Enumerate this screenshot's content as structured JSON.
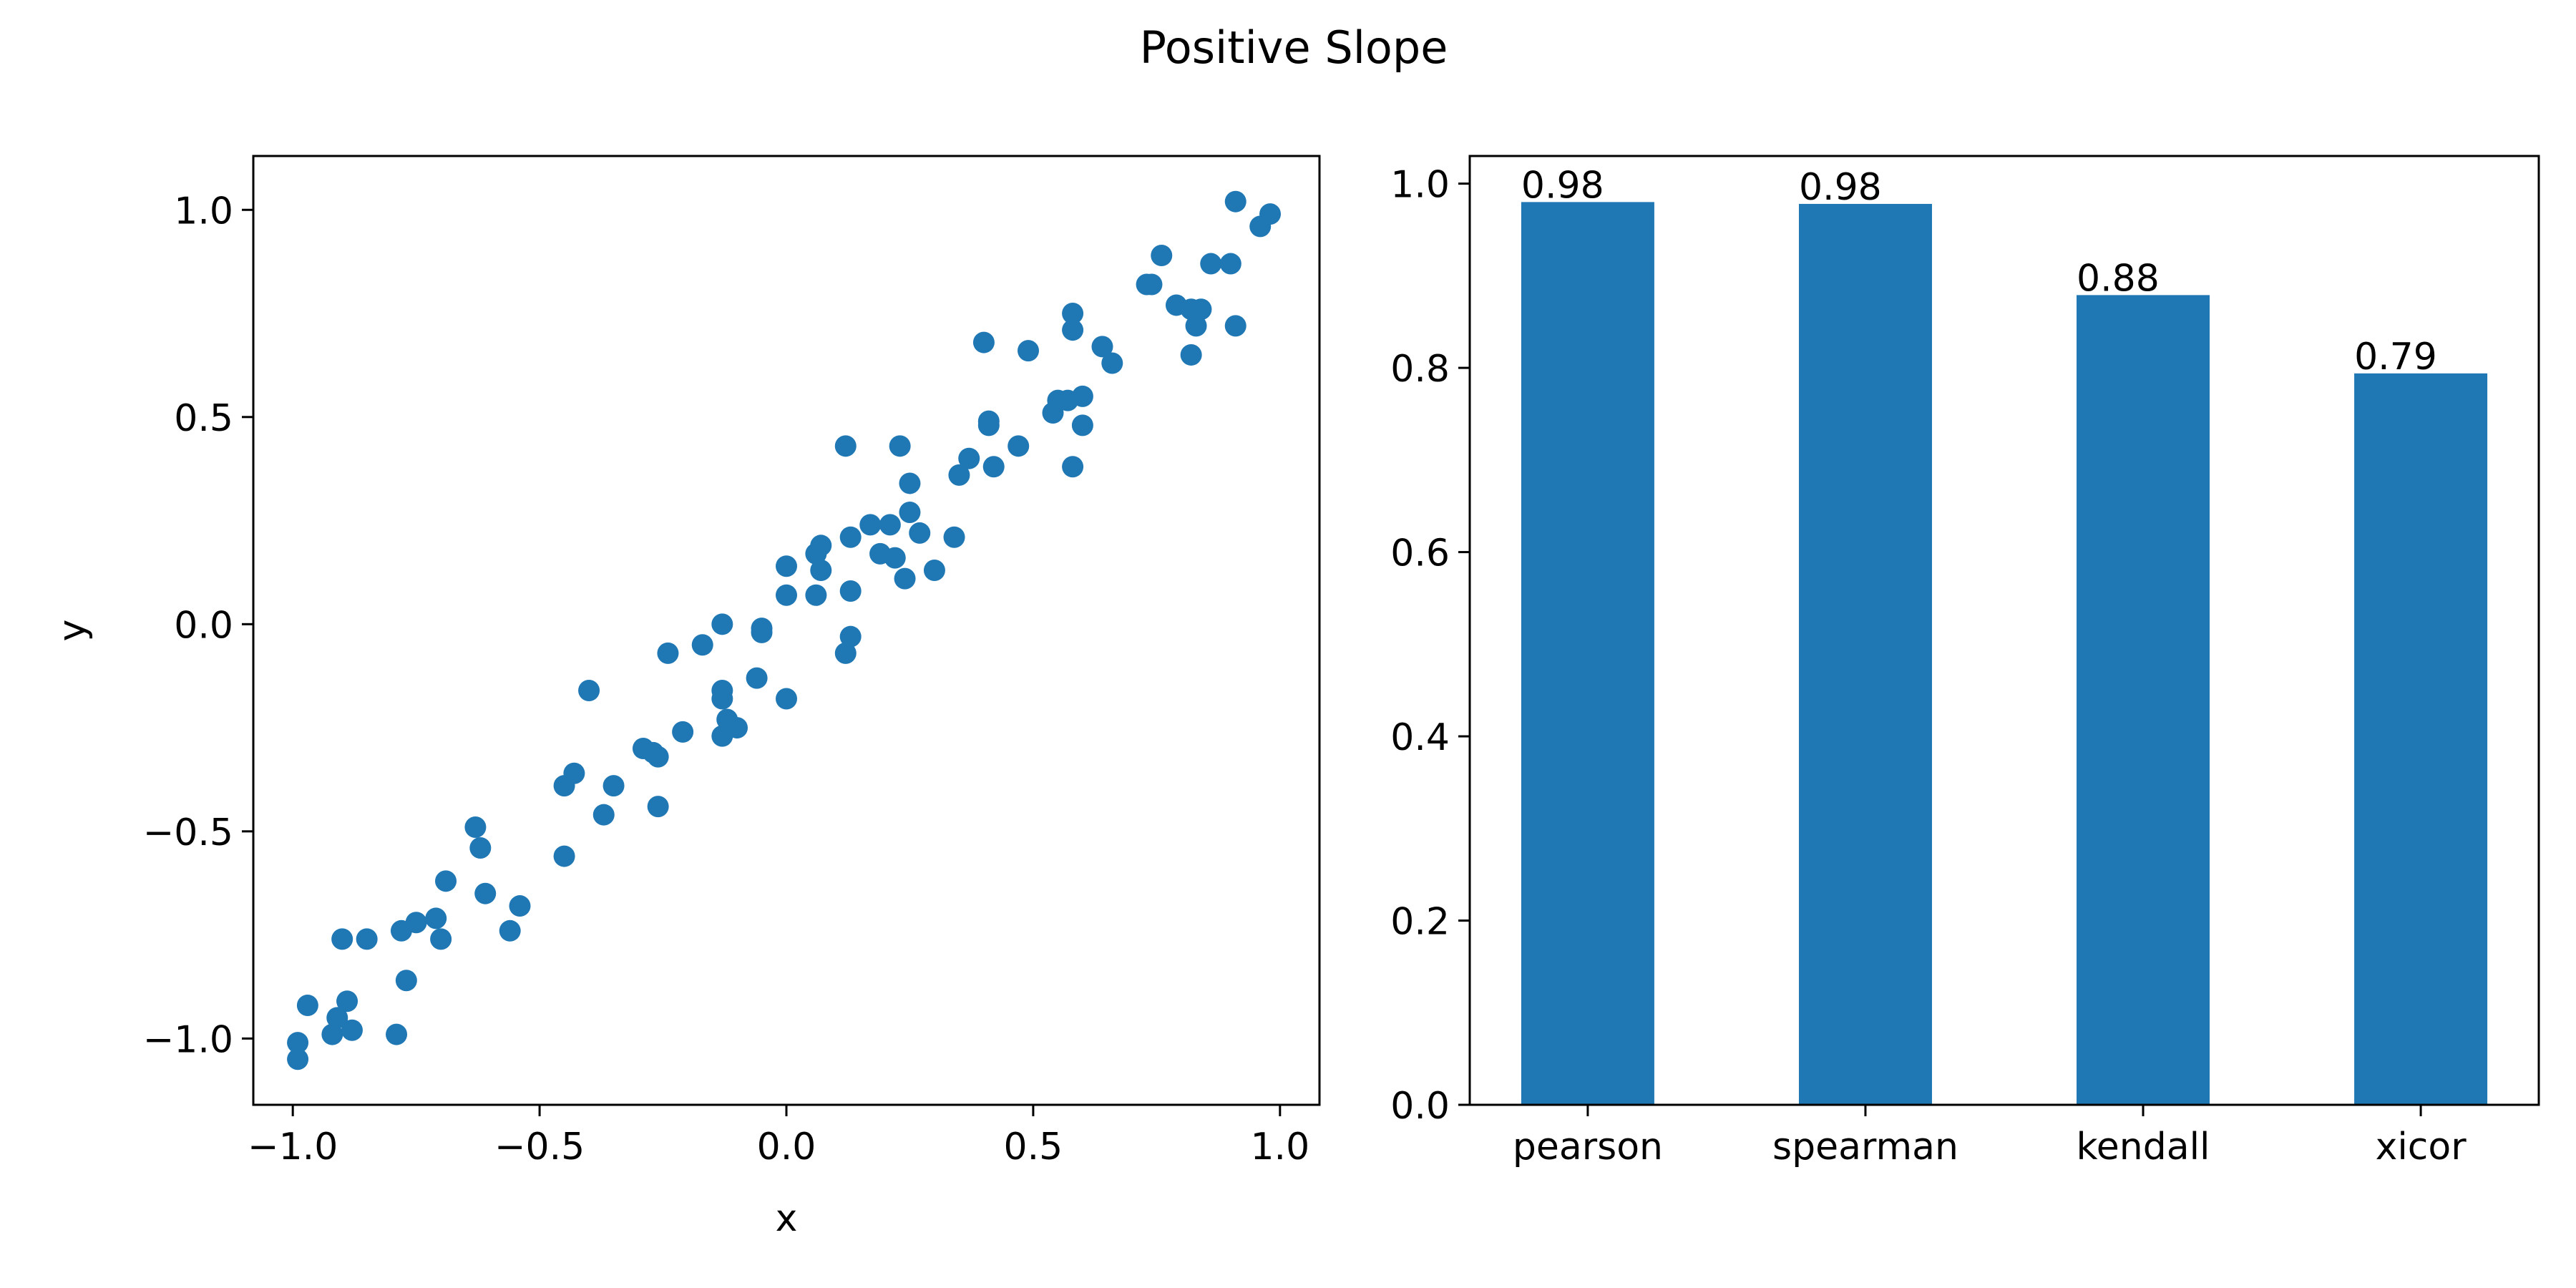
{
  "figure": {
    "title": "Positive Slope",
    "colors": {
      "series": "#1f77b4",
      "axes": "#000000",
      "background": "#ffffff"
    }
  },
  "chart_data": [
    {
      "type": "scatter",
      "xlabel": "x",
      "ylabel": "y",
      "xlim": [
        -1.08,
        1.08
      ],
      "ylim": [
        -1.16,
        1.13
      ],
      "xticks": [
        -1.0,
        -0.5,
        0.0,
        0.5,
        1.0
      ],
      "xtick_labels": [
        "−1.0",
        "−0.5",
        "0.0",
        "0.5",
        "1.0"
      ],
      "yticks": [
        -1.0,
        -0.5,
        0.0,
        0.5,
        1.0
      ],
      "ytick_labels": [
        "−1.0",
        "−0.5",
        "0.0",
        "0.5",
        "1.0"
      ],
      "grid": false,
      "points": [
        [
          -0.99,
          -1.05
        ],
        [
          -0.99,
          -1.01
        ],
        [
          -0.97,
          -0.92
        ],
        [
          -0.92,
          -0.99
        ],
        [
          -0.91,
          -0.95
        ],
        [
          -0.89,
          -0.91
        ],
        [
          -0.88,
          -0.98
        ],
        [
          -0.9,
          -0.76
        ],
        [
          -0.85,
          -0.76
        ],
        [
          -0.79,
          -0.99
        ],
        [
          -0.77,
          -0.86
        ],
        [
          -0.78,
          -0.74
        ],
        [
          -0.75,
          -0.72
        ],
        [
          -0.71,
          -0.71
        ],
        [
          -0.7,
          -0.76
        ],
        [
          -0.69,
          -0.62
        ],
        [
          -0.63,
          -0.49
        ],
        [
          -0.62,
          -0.54
        ],
        [
          -0.61,
          -0.65
        ],
        [
          -0.56,
          -0.74
        ],
        [
          -0.54,
          -0.68
        ],
        [
          -0.45,
          -0.56
        ],
        [
          -0.45,
          -0.39
        ],
        [
          -0.43,
          -0.36
        ],
        [
          -0.4,
          -0.16
        ],
        [
          -0.37,
          -0.46
        ],
        [
          -0.35,
          -0.39
        ],
        [
          -0.29,
          -0.3
        ],
        [
          -0.27,
          -0.31
        ],
        [
          -0.26,
          -0.44
        ],
        [
          -0.26,
          -0.32
        ],
        [
          -0.24,
          -0.07
        ],
        [
          -0.21,
          -0.26
        ],
        [
          -0.17,
          -0.05
        ],
        [
          -0.13,
          -0.27
        ],
        [
          -0.13,
          -0.16
        ],
        [
          -0.13,
          -0.18
        ],
        [
          -0.12,
          -0.23
        ],
        [
          -0.13,
          0.0
        ],
        [
          -0.1,
          -0.25
        ],
        [
          -0.06,
          -0.13
        ],
        [
          -0.05,
          -0.02
        ],
        [
          -0.05,
          -0.01
        ],
        [
          0.0,
          0.07
        ],
        [
          0.0,
          0.14
        ],
        [
          0.0,
          -0.18
        ],
        [
          0.06,
          0.17
        ],
        [
          0.06,
          0.07
        ],
        [
          0.07,
          0.13
        ],
        [
          0.07,
          0.19
        ],
        [
          0.12,
          0.43
        ],
        [
          0.12,
          -0.07
        ],
        [
          0.13,
          -0.03
        ],
        [
          0.13,
          0.21
        ],
        [
          0.13,
          0.08
        ],
        [
          0.17,
          0.24
        ],
        [
          0.19,
          0.17
        ],
        [
          0.21,
          0.24
        ],
        [
          0.22,
          0.16
        ],
        [
          0.23,
          0.43
        ],
        [
          0.24,
          0.11
        ],
        [
          0.25,
          0.27
        ],
        [
          0.25,
          0.34
        ],
        [
          0.27,
          0.22
        ],
        [
          0.3,
          0.13
        ],
        [
          0.34,
          0.21
        ],
        [
          0.35,
          0.36
        ],
        [
          0.37,
          0.4
        ],
        [
          0.41,
          0.48
        ],
        [
          0.41,
          0.49
        ],
        [
          0.4,
          0.68
        ],
        [
          0.42,
          0.38
        ],
        [
          0.47,
          0.43
        ],
        [
          0.49,
          0.66
        ],
        [
          0.54,
          0.51
        ],
        [
          0.55,
          0.54
        ],
        [
          0.57,
          0.54
        ],
        [
          0.58,
          0.38
        ],
        [
          0.58,
          0.75
        ],
        [
          0.58,
          0.71
        ],
        [
          0.6,
          0.55
        ],
        [
          0.6,
          0.48
        ],
        [
          0.64,
          0.67
        ],
        [
          0.66,
          0.63
        ],
        [
          0.73,
          0.82
        ],
        [
          0.74,
          0.82
        ],
        [
          0.76,
          0.89
        ],
        [
          0.79,
          0.77
        ],
        [
          0.82,
          0.76
        ],
        [
          0.82,
          0.65
        ],
        [
          0.83,
          0.72
        ],
        [
          0.84,
          0.76
        ],
        [
          0.86,
          0.87
        ],
        [
          0.9,
          0.87
        ],
        [
          0.91,
          0.72
        ],
        [
          0.91,
          1.02
        ],
        [
          0.96,
          0.96
        ],
        [
          0.98,
          0.99
        ]
      ]
    },
    {
      "type": "bar",
      "categories": [
        "pearson",
        "spearman",
        "kendall",
        "xicor"
      ],
      "values": [
        0.98,
        0.978,
        0.879,
        0.794
      ],
      "data_labels": [
        "0.98",
        "0.98",
        "0.88",
        "0.79"
      ],
      "ylim": [
        0.0,
        1.03
      ],
      "yticks": [
        0.0,
        0.2,
        0.4,
        0.6,
        0.8,
        1.0
      ],
      "ytick_labels": [
        "0.0",
        "0.2",
        "0.4",
        "0.6",
        "0.8",
        "1.0"
      ],
      "grid": false
    }
  ]
}
